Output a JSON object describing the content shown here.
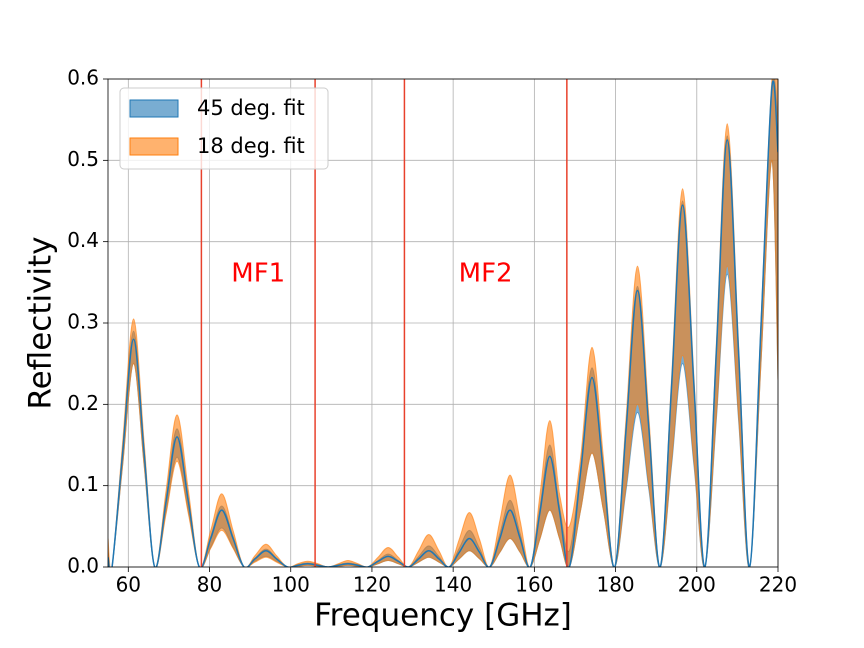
{
  "chart_data": {
    "type": "band",
    "x_label": "Frequency [GHz]",
    "y_label": "Reflectivity",
    "x": [
      55,
      56,
      58.6,
      61.3,
      63.9,
      66.5,
      69.3,
      72,
      74.8,
      77.5,
      80.3,
      83,
      85.8,
      88.5,
      91.2,
      93.9,
      96.5,
      99.2,
      101.7,
      104.2,
      106.7,
      109.2,
      111.7,
      114.1,
      116.6,
      119,
      121.5,
      124,
      126.5,
      129,
      131.5,
      134,
      136.5,
      139,
      141.5,
      144,
      146.5,
      149,
      151.5,
      154,
      156.5,
      159,
      161.4,
      163.8,
      166.2,
      168.6,
      171.4,
      174.2,
      177,
      179.8,
      182.6,
      185.4,
      188.2,
      191,
      193.8,
      196.5,
      199.3,
      202,
      204.8,
      207.5,
      210.3,
      213,
      215.8,
      218.5,
      220
    ],
    "series": [
      {
        "name": "45 deg. fit",
        "color": "#1f77b4",
        "lower": [
          0.005,
          0,
          0.125,
          0.25,
          0.125,
          0,
          0.068,
          0.135,
          0.068,
          0,
          0.024,
          0.048,
          0.024,
          0,
          0.007,
          0.013,
          0.007,
          0,
          0.001,
          0.002,
          0.001,
          0,
          0.001,
          0.002,
          0.001,
          0,
          0.004,
          0.008,
          0.004,
          0,
          0.006,
          0.012,
          0.006,
          0,
          0.01,
          0.02,
          0.01,
          0,
          0.018,
          0.035,
          0.018,
          0,
          0.035,
          0.07,
          0.035,
          0,
          0.07,
          0.14,
          0.07,
          0,
          0.095,
          0.19,
          0.095,
          0,
          0.125,
          0.25,
          0.125,
          0,
          0.18,
          0.36,
          0.18,
          0,
          0.25,
          0.5,
          0.23
        ],
        "values": [
          0.012,
          0,
          0.14,
          0.28,
          0.14,
          0,
          0.08,
          0.16,
          0.08,
          0,
          0.035,
          0.07,
          0.035,
          0,
          0.01,
          0.02,
          0.01,
          0,
          0.002,
          0.004,
          0.002,
          0,
          0.002,
          0.004,
          0.002,
          0,
          0.007,
          0.013,
          0.007,
          0,
          0.01,
          0.02,
          0.01,
          0,
          0.018,
          0.035,
          0.018,
          0,
          0.035,
          0.07,
          0.035,
          0,
          0.068,
          0.136,
          0.068,
          0,
          0.117,
          0.233,
          0.117,
          0,
          0.17,
          0.34,
          0.17,
          0,
          0.223,
          0.445,
          0.223,
          0,
          0.263,
          0.525,
          0.263,
          0,
          0.295,
          0.59,
          0.51
        ],
        "upper": [
          0.018,
          0,
          0.145,
          0.29,
          0.145,
          0,
          0.085,
          0.17,
          0.085,
          0,
          0.038,
          0.075,
          0.038,
          0,
          0.011,
          0.022,
          0.011,
          0,
          0.003,
          0.005,
          0.003,
          0,
          0.003,
          0.005,
          0.003,
          0,
          0.008,
          0.016,
          0.008,
          0,
          0.013,
          0.026,
          0.013,
          0,
          0.023,
          0.045,
          0.023,
          0,
          0.041,
          0.082,
          0.041,
          0,
          0.075,
          0.15,
          0.075,
          0.02,
          0.123,
          0.245,
          0.123,
          0,
          0.173,
          0.345,
          0.173,
          0,
          0.225,
          0.45,
          0.225,
          0,
          0.265,
          0.53,
          0.265,
          0,
          0.295,
          0.59,
          0.55
        ]
      },
      {
        "name": "18 deg. fit",
        "color": "#ff7f0e",
        "lower": [
          0.005,
          0,
          0.125,
          0.25,
          0.125,
          0,
          0.065,
          0.13,
          0.065,
          0,
          0.023,
          0.045,
          0.023,
          0,
          0.006,
          0.012,
          0.006,
          0,
          0.001,
          0.002,
          0.001,
          0,
          0.001,
          0.002,
          0.001,
          0,
          0.004,
          0.008,
          0.004,
          0,
          0.006,
          0.012,
          0.006,
          0,
          0.01,
          0.02,
          0.01,
          0,
          0.018,
          0.035,
          0.018,
          0,
          0.035,
          0.07,
          0.035,
          0,
          0.07,
          0.14,
          0.07,
          0,
          0.1,
          0.2,
          0.1,
          0,
          0.13,
          0.26,
          0.13,
          0,
          0.185,
          0.37,
          0.185,
          0,
          0.25,
          0.5,
          0.23
        ],
        "upper": [
          0.035,
          0,
          0.153,
          0.305,
          0.153,
          0,
          0.094,
          0.187,
          0.094,
          0,
          0.045,
          0.09,
          0.045,
          0,
          0.014,
          0.028,
          0.014,
          0,
          0.004,
          0.007,
          0.004,
          0,
          0.004,
          0.008,
          0.004,
          0,
          0.012,
          0.024,
          0.012,
          0,
          0.02,
          0.04,
          0.02,
          0,
          0.034,
          0.067,
          0.034,
          0,
          0.057,
          0.113,
          0.057,
          0,
          0.09,
          0.18,
          0.09,
          0.05,
          0.135,
          0.27,
          0.135,
          0,
          0.185,
          0.37,
          0.185,
          0,
          0.233,
          0.465,
          0.233,
          0,
          0.273,
          0.545,
          0.273,
          0,
          0.3,
          0.6,
          0.6
        ]
      }
    ],
    "vlines": [
      78,
      106,
      128,
      168
    ],
    "vline_color": "#e8412c",
    "annotations": [
      {
        "text": "MF1",
        "x": 92,
        "y": 0.36,
        "color": "#ff0000"
      },
      {
        "text": "MF2",
        "x": 148,
        "y": 0.36,
        "color": "#ff0000"
      }
    ],
    "xlim": [
      55,
      220
    ],
    "xticks": [
      60,
      80,
      100,
      120,
      140,
      160,
      180,
      200,
      220
    ],
    "ylim": [
      0,
      0.6
    ],
    "yticks": [
      {
        "value": 0,
        "label": "0.0"
      },
      0.1,
      0.2,
      0.3,
      0.4,
      0.5,
      0.6
    ],
    "grid": true,
    "legend": "upper left"
  }
}
